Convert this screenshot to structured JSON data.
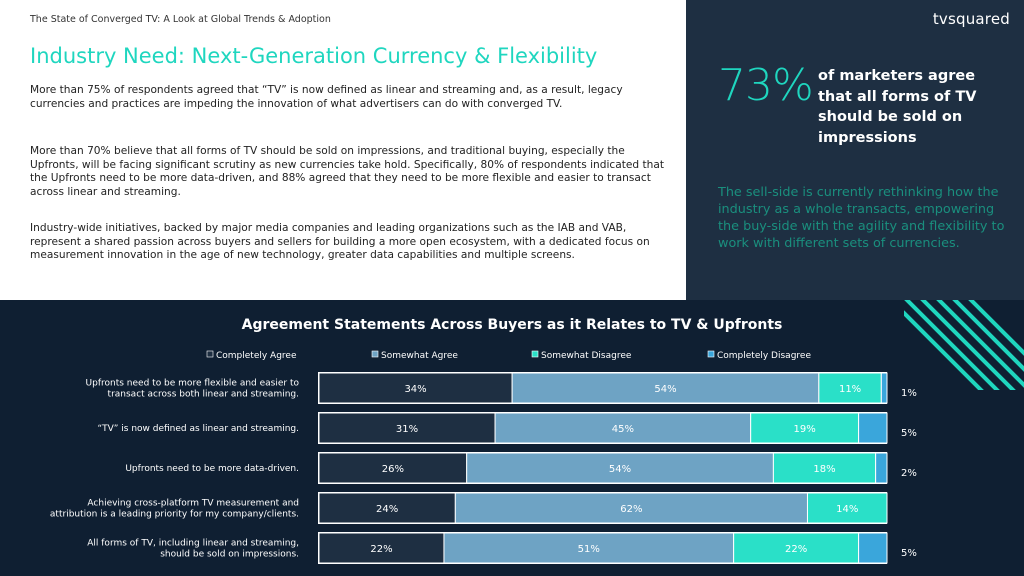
{
  "header": {
    "doc_title": "The State of Converged TV: A Look at Global Trends & Adoption",
    "heading": "Industry Need: Next-Generation Currency & Flexibility",
    "brand": "tvsquared"
  },
  "body": {
    "paragraphs": [
      "More than 75% of respondents agreed that “TV” is now defined as linear and streaming and, as a result, legacy currencies and practices are impeding the innovation of what advertisers can do with converged TV.",
      "More than 70% believe that all forms of TV should be sold on impressions, and traditional buying, especially the Upfronts, will be facing significant scrutiny as new currencies take hold. Specifically, 80% of respondents indicated that the Upfronts need to be more data-driven, and 88% agreed that they need to be more flexible and easier to transact across linear and streaming.",
      "Industry-wide initiatives, backed by major media companies and leading organizations such as the IAB and VAB, represent a shared passion across buyers and sellers for building a more open ecosystem, with a dedicated focus on measurement innovation in the age of new technology, greater data capabilities and multiple screens."
    ]
  },
  "sidebar": {
    "stat_value": "73%",
    "stat_text": "of marketers agree that all forms of TV should be sold on impressions",
    "quote": "The sell-side is currently rethinking how the industry as a whole transacts, empowering the buy-side with the agility and flexibility to work with different sets of currencies."
  },
  "colors": {
    "accent": "#1fd6bf",
    "completely_agree": "#1e2f42",
    "somewhat_agree": "#6ea3c4",
    "somewhat_disagree": "#2ae0c8",
    "completely_disagree": "#3aa6db"
  },
  "chart_data": {
    "type": "bar",
    "orientation": "horizontal",
    "stacked": true,
    "title": "Agreement Statements Across Buyers as it Relates to TV & Upfronts",
    "legend_position": "top",
    "categories": [
      [
        "Upfronts need to be more flexible and easier to",
        "transact across both linear and streaming."
      ],
      [
        "“TV” is now defined as linear and streaming."
      ],
      [
        "Upfronts need to be more data-driven."
      ],
      [
        "Achieving cross-platform TV measurement and",
        "attribution is a leading priority for my company/clients."
      ],
      [
        "All forms of TV, including linear and streaming,",
        "should be sold on impressions."
      ]
    ],
    "series": [
      {
        "name": "Completely Agree",
        "values": [
          34,
          31,
          26,
          24,
          22
        ]
      },
      {
        "name": "Somewhat Agree",
        "values": [
          54,
          45,
          54,
          62,
          51
        ]
      },
      {
        "name": "Somewhat Disagree",
        "values": [
          11,
          19,
          18,
          14,
          22
        ]
      },
      {
        "name": "Completely Disagree",
        "values": [
          1,
          5,
          2,
          0,
          5
        ]
      }
    ],
    "data_labels": [
      [
        "34%",
        "54%",
        "11%",
        "1%"
      ],
      [
        "31%",
        "45%",
        "19%",
        "5%"
      ],
      [
        "26%",
        "54%",
        "18%",
        "2%"
      ],
      [
        "24%",
        "62%",
        "14%",
        ""
      ],
      [
        "22%",
        "51%",
        "22%",
        "5%"
      ]
    ],
    "xlim": [
      0,
      100
    ]
  }
}
